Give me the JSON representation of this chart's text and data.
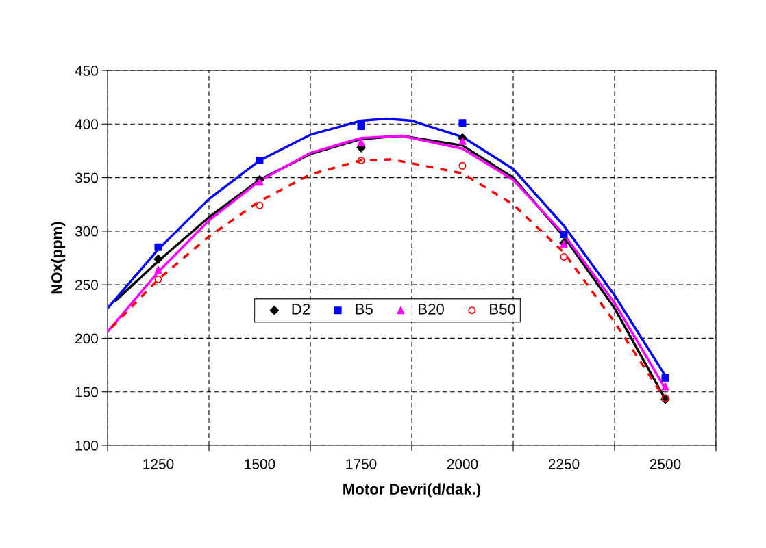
{
  "chart_data": {
    "type": "scatter",
    "xlabel": "Motor Devri(d/dak.)",
    "ylabel": "NOx(ppm)",
    "xlim": [
      1125,
      2625
    ],
    "ylim": [
      100,
      450
    ],
    "xticks": [
      {
        "value": 1125,
        "label": null
      },
      {
        "value": 1250,
        "label": "1250"
      },
      {
        "value": 1375,
        "label": null
      },
      {
        "value": 1500,
        "label": "1500"
      },
      {
        "value": 1625,
        "label": null
      },
      {
        "value": 1750,
        "label": "1750"
      },
      {
        "value": 1875,
        "label": null
      },
      {
        "value": 2000,
        "label": "2000"
      },
      {
        "value": 2125,
        "label": null
      },
      {
        "value": 2250,
        "label": "2250"
      },
      {
        "value": 2375,
        "label": null
      },
      {
        "value": 2500,
        "label": "2500"
      },
      {
        "value": 2625,
        "label": null
      }
    ],
    "yticks": [
      100,
      150,
      200,
      250,
      300,
      350,
      400,
      450
    ],
    "grid": true,
    "legend": "center",
    "series": [
      {
        "type": "line",
        "color": "#000000",
        "line_style": "solid",
        "x": [
          1145,
          1250,
          1375,
          1500,
          1625,
          1750,
          1850,
          2000,
          2125,
          2250,
          2375,
          2500
        ],
        "values": [
          235,
          272,
          313,
          348,
          372,
          386,
          389,
          380,
          350,
          295,
          228,
          143
        ]
      },
      {
        "type": "line",
        "color": "#0000ff",
        "line_style": "solid",
        "x": [
          1125,
          1250,
          1375,
          1500,
          1625,
          1750,
          1812,
          1875,
          2000,
          2125,
          2250,
          2375,
          2500
        ],
        "values": [
          228,
          283,
          330,
          366,
          390,
          403,
          405,
          403,
          388,
          358,
          305,
          240,
          165
        ]
      },
      {
        "type": "line",
        "color": "#ff00ff",
        "line_style": "solid",
        "x": [
          1125,
          1250,
          1375,
          1500,
          1625,
          1750,
          1850,
          2000,
          2125,
          2250,
          2375,
          2500
        ],
        "values": [
          206,
          262,
          310,
          347,
          373,
          387,
          389,
          377,
          348,
          297,
          233,
          153
        ]
      },
      {
        "type": "line",
        "color": "#ff0000",
        "line_style": "dashed",
        "x": [
          1135,
          1250,
          1375,
          1500,
          1625,
          1750,
          1825,
          2000,
          2125,
          2250,
          2375,
          2500
        ],
        "values": [
          210,
          255,
          295,
          328,
          353,
          366,
          367,
          354,
          325,
          280,
          215,
          143
        ]
      },
      {
        "name": "D2",
        "color": "#000000",
        "marker": "diamond",
        "x": [
          1250,
          1500,
          1750,
          2000,
          2250,
          2500
        ],
        "values": [
          274,
          348,
          378,
          387,
          289,
          143
        ]
      },
      {
        "name": "B5",
        "color": "#0000ff",
        "marker": "square",
        "x": [
          1250,
          1500,
          1750,
          2000,
          2250,
          2500
        ],
        "values": [
          285,
          366,
          398,
          401,
          297,
          163
        ]
      },
      {
        "name": "B20",
        "color": "#ff00ff",
        "marker": "triangle",
        "x": [
          1250,
          1500,
          1750,
          2000,
          2250,
          2500
        ],
        "values": [
          264,
          346,
          383,
          384,
          288,
          155
        ]
      },
      {
        "name": "B50",
        "color": "#ff0000",
        "marker": "circle",
        "x": [
          1250,
          1500,
          1750,
          2000,
          2250,
          2500
        ],
        "values": [
          255,
          324,
          366,
          361,
          276,
          144
        ]
      }
    ]
  }
}
